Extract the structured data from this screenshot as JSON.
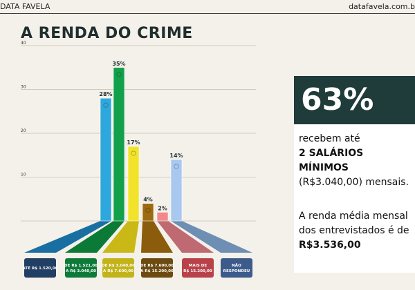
{
  "header": {
    "left": "DATA FAVELA",
    "right": "datafavela.com.b"
  },
  "title": "A RENDA DO CRIME",
  "highlight": {
    "big_value": "63%",
    "line1": "recebem até",
    "line2": "2 SALÁRIOS MÍNIMOS",
    "line3": "(R$3.040,00) mensais.",
    "line4": "A renda média mensal",
    "line5": "dos entrevistados é de",
    "line6": "R$3.536,00"
  },
  "chart_data": {
    "type": "bar",
    "ylim": [
      0,
      40
    ],
    "yticks": [
      10,
      20,
      30,
      40
    ],
    "grid": true,
    "categories": [
      [
        "ATÉ R$ 1.520,00"
      ],
      [
        "DE R$ 1.521,00",
        "A R$ 3.040,00"
      ],
      [
        "DE R$ 3.040,00",
        "A R$ 7.600,00"
      ],
      [
        "DE R$ 7.600,00",
        "A R$ 15.200,00"
      ],
      [
        "MAIS DE",
        "R$ 15.200,00"
      ],
      [
        "NÃO",
        "RESPONDEU"
      ]
    ],
    "bars": [
      {
        "label": "28%",
        "value": 28,
        "color": "#2ea8dc",
        "base": "#1a6fa2",
        "tag": "#213e63"
      },
      {
        "label": "35%",
        "value": 35,
        "color": "#13a04b",
        "base": "#0c7a37",
        "tag": "#0e7a3a"
      },
      {
        "label": "17%",
        "value": 17,
        "color": "#f2e22a",
        "base": "#c9b815",
        "tag": "#c2b31a"
      },
      {
        "label": "4%",
        "value": 4,
        "color": "#9c6b12",
        "base": "#8a5c0c",
        "tag": "#6c4a10"
      },
      {
        "label": "2%",
        "value": 2,
        "color": "#f08a8a",
        "base": "#bf6a72",
        "tag": "#b9424a"
      },
      {
        "label": "14%",
        "value": 14,
        "color": "#a9c8f0",
        "base": "#6e8fb3",
        "tag": "#3d5b8a"
      }
    ]
  }
}
